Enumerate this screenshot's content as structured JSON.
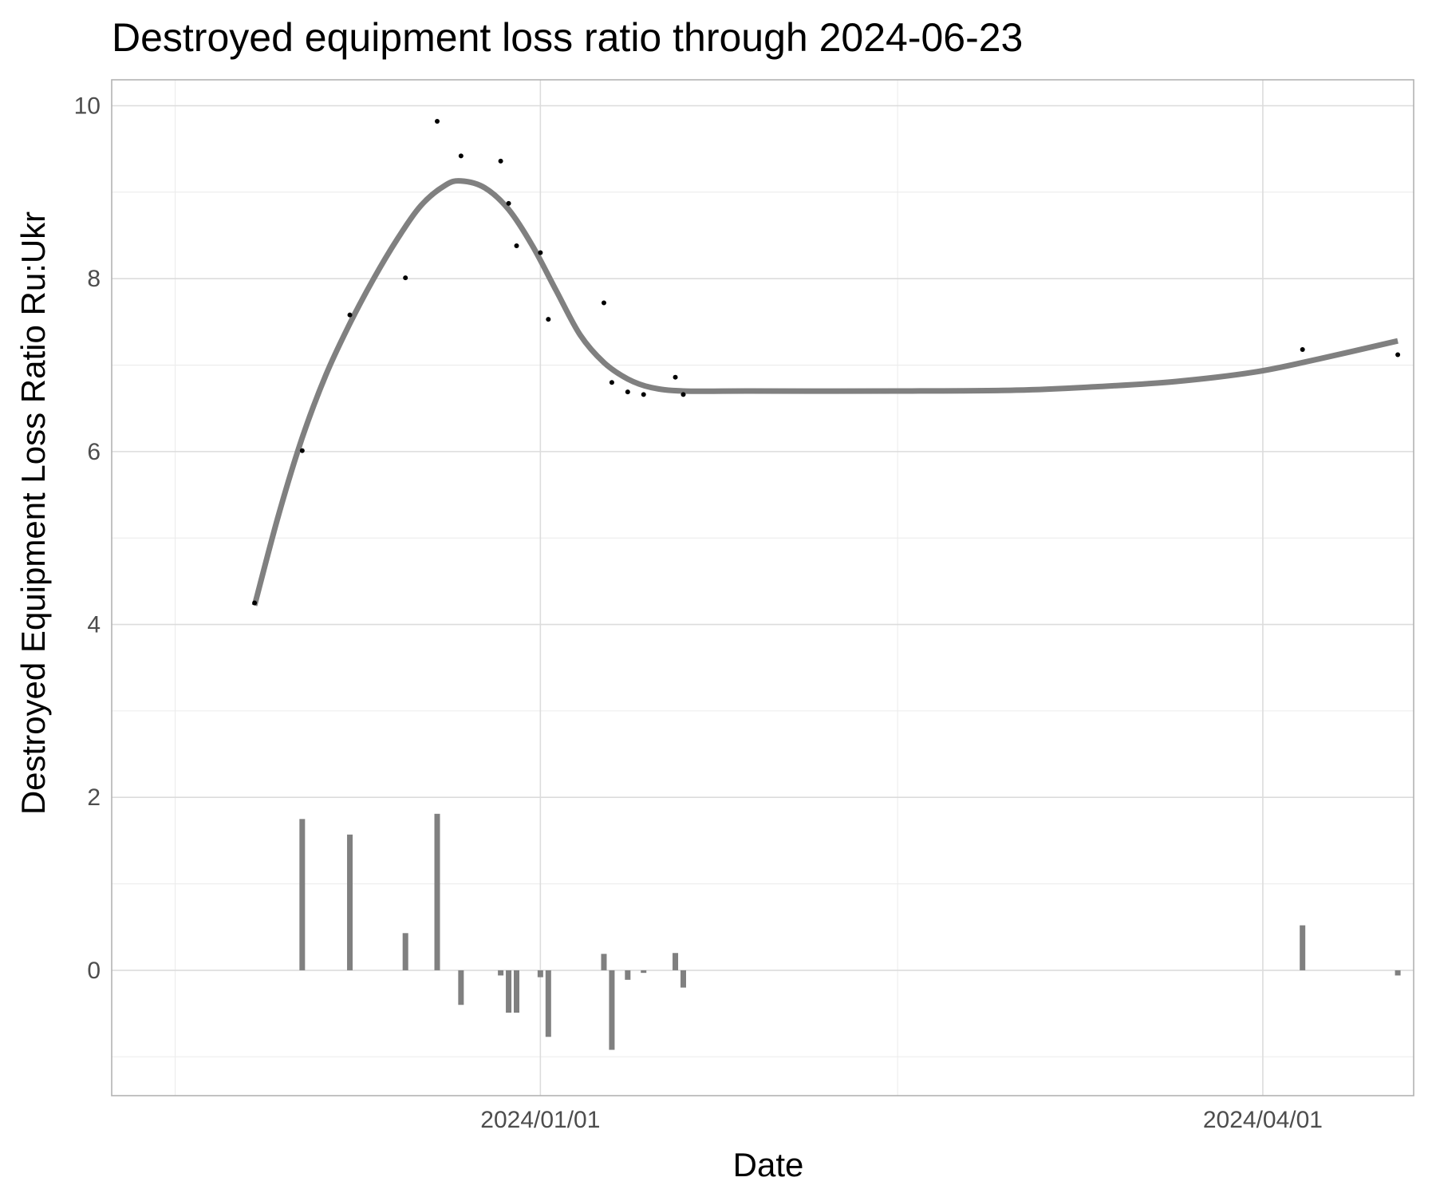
{
  "chart_data": {
    "type": "line",
    "title": "Destroyed equipment loss ratio through 2024-06-23",
    "xlabel": "Date",
    "ylabel": "Destroyed Equipment Loss Ratio Ru:Ukr",
    "xlim": [
      "2023-11-08",
      "2024-04-20"
    ],
    "ylim": [
      -1.45,
      10.3
    ],
    "x_major_ticks": [
      {
        "date": "2024-01-01",
        "label": "2024/01/01"
      },
      {
        "date": "2024-04-01",
        "label": "2024/04/01"
      }
    ],
    "x_minor_ticks": [
      "2023-11-16",
      "2024-02-15"
    ],
    "y_major_ticks": [
      0,
      2,
      4,
      6,
      8,
      10
    ],
    "y_minor_ticks": [
      -1,
      1,
      3,
      5,
      7,
      9
    ],
    "grid": true,
    "series": [
      {
        "type": "scatter",
        "points": [
          {
            "x": "2023-11-26",
            "y": 4.25
          },
          {
            "x": "2023-12-02",
            "y": 6.01
          },
          {
            "x": "2023-12-08",
            "y": 7.58
          },
          {
            "x": "2023-12-15",
            "y": 8.01
          },
          {
            "x": "2023-12-19",
            "y": 9.82
          },
          {
            "x": "2023-12-22",
            "y": 9.42
          },
          {
            "x": "2023-12-27",
            "y": 9.36
          },
          {
            "x": "2023-12-28",
            "y": 8.87
          },
          {
            "x": "2023-12-29",
            "y": 8.38
          },
          {
            "x": "2024-01-01",
            "y": 8.3
          },
          {
            "x": "2024-01-02",
            "y": 7.53
          },
          {
            "x": "2024-01-09",
            "y": 7.72
          },
          {
            "x": "2024-01-10",
            "y": 6.8
          },
          {
            "x": "2024-01-12",
            "y": 6.69
          },
          {
            "x": "2024-01-14",
            "y": 6.66
          },
          {
            "x": "2024-01-18",
            "y": 6.86
          },
          {
            "x": "2024-01-19",
            "y": 6.66
          },
          {
            "x": "2024-04-06",
            "y": 7.18
          },
          {
            "x": "2024-04-18",
            "y": 7.12
          }
        ]
      },
      {
        "type": "line",
        "smooth": true,
        "points": [
          {
            "x": "2023-11-26",
            "y": 4.22
          },
          {
            "x": "2023-11-29",
            "y": 5.26
          },
          {
            "x": "2023-12-02",
            "y": 6.16
          },
          {
            "x": "2023-12-05",
            "y": 6.89
          },
          {
            "x": "2023-12-08",
            "y": 7.48
          },
          {
            "x": "2023-12-11",
            "y": 8.0
          },
          {
            "x": "2023-12-14",
            "y": 8.46
          },
          {
            "x": "2023-12-17",
            "y": 8.85
          },
          {
            "x": "2023-12-20",
            "y": 9.08
          },
          {
            "x": "2023-12-22",
            "y": 9.13
          },
          {
            "x": "2023-12-25",
            "y": 9.05
          },
          {
            "x": "2023-12-28",
            "y": 8.8
          },
          {
            "x": "2023-12-31",
            "y": 8.38
          },
          {
            "x": "2024-01-03",
            "y": 7.86
          },
          {
            "x": "2024-01-06",
            "y": 7.35
          },
          {
            "x": "2024-01-09",
            "y": 7.03
          },
          {
            "x": "2024-01-12",
            "y": 6.84
          },
          {
            "x": "2024-01-15",
            "y": 6.74
          },
          {
            "x": "2024-01-19",
            "y": 6.7
          },
          {
            "x": "2024-01-27",
            "y": 6.7
          },
          {
            "x": "2024-02-15",
            "y": 6.7
          },
          {
            "x": "2024-03-01",
            "y": 6.71
          },
          {
            "x": "2024-03-11",
            "y": 6.75
          },
          {
            "x": "2024-03-21",
            "y": 6.81
          },
          {
            "x": "2024-03-31",
            "y": 6.92
          },
          {
            "x": "2024-04-08",
            "y": 7.07
          },
          {
            "x": "2024-04-18",
            "y": 7.28
          }
        ]
      },
      {
        "type": "bar",
        "points": [
          {
            "x": "2023-12-02",
            "y": 1.75
          },
          {
            "x": "2023-12-08",
            "y": 1.57
          },
          {
            "x": "2023-12-15",
            "y": 0.43
          },
          {
            "x": "2023-12-19",
            "y": 1.81
          },
          {
            "x": "2023-12-22",
            "y": -0.4
          },
          {
            "x": "2023-12-27",
            "y": -0.06
          },
          {
            "x": "2023-12-28",
            "y": -0.49
          },
          {
            "x": "2023-12-29",
            "y": -0.49
          },
          {
            "x": "2024-01-01",
            "y": -0.08
          },
          {
            "x": "2024-01-02",
            "y": -0.77
          },
          {
            "x": "2024-01-09",
            "y": 0.19
          },
          {
            "x": "2024-01-10",
            "y": -0.92
          },
          {
            "x": "2024-01-12",
            "y": -0.11
          },
          {
            "x": "2024-01-14",
            "y": -0.03
          },
          {
            "x": "2024-01-18",
            "y": 0.2
          },
          {
            "x": "2024-01-19",
            "y": -0.2
          },
          {
            "x": "2024-04-06",
            "y": 0.52
          },
          {
            "x": "2024-04-18",
            "y": -0.06
          }
        ]
      }
    ]
  }
}
